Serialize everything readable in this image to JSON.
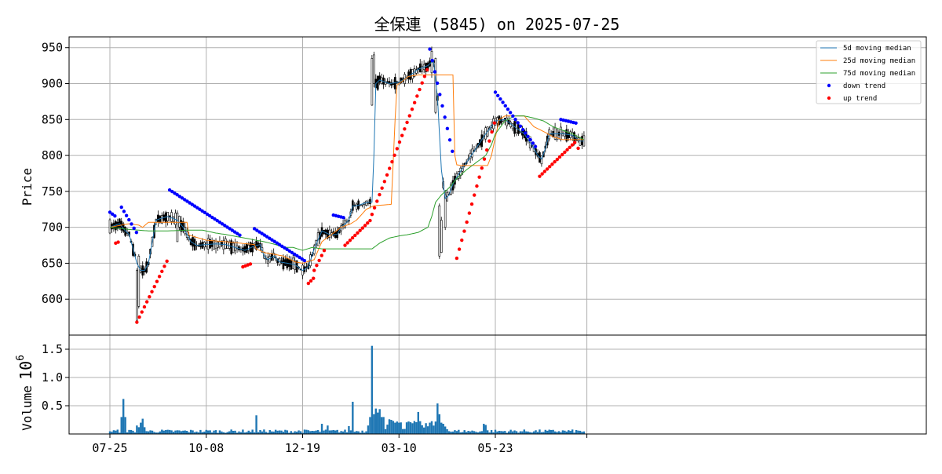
{
  "chart_data": [
    {
      "type": "candlestick",
      "title": "全保連 (5845) on 2025-07-25",
      "ylabel": "Price",
      "ylim": [
        550,
        965
      ],
      "yticks": [
        600,
        650,
        700,
        750,
        800,
        850,
        900,
        950
      ],
      "xticks": [
        {
          "label": "07-25",
          "index": 0
        },
        {
          "label": "10-08",
          "index": 50
        },
        {
          "label": "12-19",
          "index": 100
        },
        {
          "label": "03-10",
          "index": 150
        },
        {
          "label": "05-23",
          "index": 200
        }
      ],
      "grid": true,
      "legend": {
        "placement": "top-right"
      },
      "colors": {
        "ma5": "#1f77b4",
        "ma25": "#ff7f0e",
        "ma75": "#2ca02c",
        "down_trend": "#0000ff",
        "up_trend": "#ff0000",
        "candle": "#000000"
      },
      "series": [
        {
          "key": "ma5",
          "name": "5d moving median",
          "anchors": [
            [
              0,
              700
            ],
            [
              5,
              705
            ],
            [
              8,
              695
            ],
            [
              10,
              690
            ],
            [
              12,
              670
            ],
            [
              14,
              650
            ],
            [
              16,
              640
            ],
            [
              18,
              640
            ],
            [
              20,
              650
            ],
            [
              22,
              680
            ],
            [
              24,
              710
            ],
            [
              26,
              712
            ],
            [
              30,
              715
            ],
            [
              35,
              710
            ],
            [
              38,
              700
            ],
            [
              40,
              690
            ],
            [
              42,
              680
            ],
            [
              45,
              675
            ],
            [
              50,
              676
            ],
            [
              55,
              677
            ],
            [
              60,
              676
            ],
            [
              65,
              672
            ],
            [
              70,
              668
            ],
            [
              75,
              674
            ],
            [
              78,
              676
            ],
            [
              80,
              660
            ],
            [
              82,
              655
            ],
            [
              85,
              660
            ],
            [
              88,
              652
            ],
            [
              92,
              650
            ],
            [
              96,
              648
            ],
            [
              100,
              640
            ],
            [
              103,
              645
            ],
            [
              106,
              670
            ],
            [
              110,
              695
            ],
            [
              114,
              690
            ],
            [
              118,
              690
            ],
            [
              120,
              700
            ],
            [
              124,
              710
            ],
            [
              126,
              730
            ],
            [
              128,
              730
            ],
            [
              134,
              735
            ],
            [
              136,
              735
            ],
            [
              137,
              800
            ],
            [
              138,
              900
            ],
            [
              140,
              905
            ],
            [
              145,
              900
            ],
            [
              150,
              902
            ],
            [
              155,
              910
            ],
            [
              160,
              920
            ],
            [
              165,
              925
            ],
            [
              167,
              930
            ],
            [
              168,
              930
            ],
            [
              170,
              880
            ],
            [
              172,
              780
            ],
            [
              174,
              740
            ],
            [
              176,
              745
            ],
            [
              178,
              760
            ],
            [
              180,
              770
            ],
            [
              185,
              790
            ],
            [
              190,
              810
            ],
            [
              195,
              830
            ],
            [
              200,
              848
            ],
            [
              205,
              850
            ],
            [
              210,
              840
            ],
            [
              215,
              830
            ],
            [
              220,
              810
            ],
            [
              222,
              800
            ],
            [
              224,
              795
            ],
            [
              226,
              810
            ],
            [
              228,
              830
            ],
            [
              232,
              830
            ],
            [
              236,
              830
            ],
            [
              240,
              828
            ],
            [
              244,
              820
            ],
            [
              246,
              820
            ]
          ]
        },
        {
          "key": "ma25",
          "name": "25d moving median",
          "anchors": [
            [
              0,
              700
            ],
            [
              10,
              705
            ],
            [
              15,
              703
            ],
            [
              17,
              700
            ],
            [
              20,
              707
            ],
            [
              40,
              707
            ],
            [
              40,
              690
            ],
            [
              50,
              682
            ],
            [
              60,
              680
            ],
            [
              75,
              676
            ],
            [
              76,
              670
            ],
            [
              80,
              665
            ],
            [
              90,
              660
            ],
            [
              96,
              652
            ],
            [
              100,
              650
            ],
            [
              106,
              655
            ],
            [
              110,
              680
            ],
            [
              115,
              690
            ],
            [
              120,
              700
            ],
            [
              125,
              705
            ],
            [
              128,
              710
            ],
            [
              133,
              725
            ],
            [
              137,
              730
            ],
            [
              146,
              732
            ],
            [
              148,
              850
            ],
            [
              149,
              898
            ],
            [
              150,
              900
            ],
            [
              155,
              910
            ],
            [
              160,
              912
            ],
            [
              168,
              912
            ],
            [
              178,
              912
            ],
            [
              179,
              800
            ],
            [
              180,
              787
            ],
            [
              182,
              786
            ],
            [
              196,
              786
            ],
            [
              198,
              800
            ],
            [
              200,
              825
            ],
            [
              202,
              850
            ],
            [
              205,
              855
            ],
            [
              215,
              855
            ],
            [
              220,
              840
            ],
            [
              226,
              832
            ],
            [
              230,
              826
            ],
            [
              235,
              822
            ],
            [
              245,
              822
            ],
            [
              246,
              822
            ]
          ]
        },
        {
          "key": "ma75",
          "name": "75d moving median",
          "anchors": [
            [
              0,
              700
            ],
            [
              10,
              697
            ],
            [
              20,
              695
            ],
            [
              30,
              695
            ],
            [
              40,
              696
            ],
            [
              48,
              696
            ],
            [
              55,
              692
            ],
            [
              60,
              690
            ],
            [
              70,
              685
            ],
            [
              80,
              680
            ],
            [
              86,
              676
            ],
            [
              90,
              672
            ],
            [
              95,
              672
            ],
            [
              100,
              668
            ],
            [
              105,
              672
            ],
            [
              110,
              670
            ],
            [
              120,
              670
            ],
            [
              130,
              670
            ],
            [
              136,
              670
            ],
            [
              140,
              678
            ],
            [
              145,
              685
            ],
            [
              150,
              688
            ],
            [
              155,
              690
            ],
            [
              160,
              693
            ],
            [
              165,
              700
            ],
            [
              167,
              715
            ],
            [
              169,
              735
            ],
            [
              172,
              745
            ],
            [
              176,
              755
            ],
            [
              180,
              768
            ],
            [
              185,
              780
            ],
            [
              190,
              790
            ],
            [
              195,
              800
            ],
            [
              198,
              815
            ],
            [
              200,
              830
            ],
            [
              205,
              848
            ],
            [
              210,
              855
            ],
            [
              215,
              855
            ],
            [
              220,
              852
            ],
            [
              225,
              848
            ],
            [
              230,
              840
            ],
            [
              235,
              835
            ],
            [
              240,
              830
            ],
            [
              246,
              822
            ]
          ]
        }
      ],
      "trend_segments": [
        {
          "trend": "down",
          "start": 0,
          "end": 3,
          "from": 721,
          "to": 715
        },
        {
          "trend": "down",
          "start": 6,
          "end": 14,
          "from": 728,
          "to": 692
        },
        {
          "trend": "up",
          "start": 3,
          "end": 5,
          "from": 678,
          "to": 680
        },
        {
          "trend": "up",
          "start": 14,
          "end": 30,
          "from": 568,
          "to": 655
        },
        {
          "trend": "down",
          "start": 31,
          "end": 68,
          "from": 752,
          "to": 688
        },
        {
          "trend": "up",
          "start": 69,
          "end": 74,
          "from": 645,
          "to": 650
        },
        {
          "trend": "down",
          "start": 75,
          "end": 102,
          "from": 698,
          "to": 652
        },
        {
          "trend": "up",
          "start": 103,
          "end": 106,
          "from": 622,
          "to": 630
        },
        {
          "trend": "up",
          "start": 106,
          "end": 112,
          "from": 640,
          "to": 672
        },
        {
          "trend": "down",
          "start": 116,
          "end": 122,
          "from": 717,
          "to": 713
        },
        {
          "trend": "up",
          "start": 122,
          "end": 136,
          "from": 675,
          "to": 712
        },
        {
          "trend": "up",
          "start": 136,
          "end": 165,
          "from": 718,
          "to": 922
        },
        {
          "trend": "down",
          "start": 166,
          "end": 179,
          "from": 948,
          "to": 790
        },
        {
          "trend": "up",
          "start": 180,
          "end": 200,
          "from": 657,
          "to": 850
        },
        {
          "trend": "down",
          "start": 200,
          "end": 222,
          "from": 888,
          "to": 808
        },
        {
          "trend": "up",
          "start": 223,
          "end": 242,
          "from": 771,
          "to": 820
        },
        {
          "trend": "down",
          "start": 234,
          "end": 242,
          "from": 850,
          "to": 845
        },
        {
          "trend": "up",
          "start": 243,
          "end": 243,
          "from": 810,
          "to": 810
        }
      ]
    },
    {
      "type": "bar",
      "ylabel": "Volume",
      "yscale_label": "10^6",
      "ylim": [
        0,
        1.75
      ],
      "yticks": [
        0.5,
        1.0,
        1.5
      ],
      "ytick_labels": [
        "0.5",
        "1.0",
        "1.5"
      ],
      "grid": true,
      "color": "#1f77b4",
      "spikes": [
        [
          6,
          0.3
        ],
        [
          7,
          0.62
        ],
        [
          8,
          0.3
        ],
        [
          14,
          0.15
        ],
        [
          15,
          0.12
        ],
        [
          16,
          0.2
        ],
        [
          17,
          0.27
        ],
        [
          18,
          0.12
        ],
        [
          76,
          0.33
        ],
        [
          110,
          0.18
        ],
        [
          113,
          0.15
        ],
        [
          124,
          0.14
        ],
        [
          126,
          0.57
        ],
        [
          134,
          0.15
        ],
        [
          135,
          0.3
        ],
        [
          136,
          1.56
        ],
        [
          137,
          0.35
        ],
        [
          138,
          0.45
        ],
        [
          139,
          0.38
        ],
        [
          140,
          0.44
        ],
        [
          141,
          0.3
        ],
        [
          142,
          0.3
        ],
        [
          145,
          0.26
        ],
        [
          146,
          0.25
        ],
        [
          147,
          0.23
        ],
        [
          148,
          0.2
        ],
        [
          149,
          0.22
        ],
        [
          150,
          0.2
        ],
        [
          160,
          0.39
        ],
        [
          169,
          0.22
        ],
        [
          170,
          0.54
        ],
        [
          171,
          0.35
        ],
        [
          172,
          0.2
        ],
        [
          173,
          0.18
        ],
        [
          194,
          0.18
        ],
        [
          195,
          0.16
        ]
      ]
    }
  ]
}
